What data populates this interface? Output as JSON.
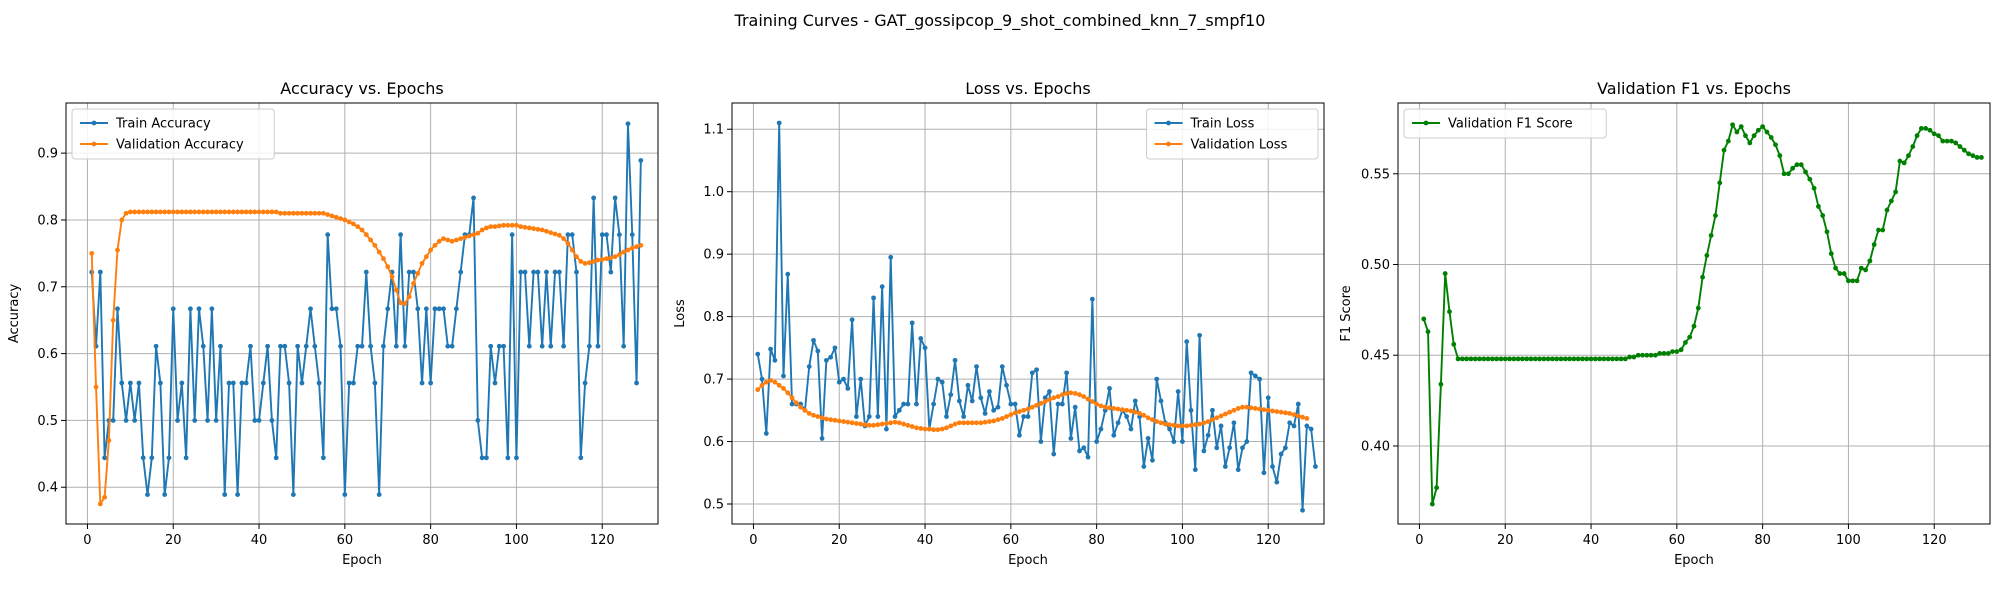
{
  "figure": {
    "suptitle": "Training Curves - GAT_gossipcop_9_shot_combined_knn_7_smpf10"
  },
  "colors": {
    "blue": "#1f77b4",
    "orange": "#ff7f0e",
    "green": "#008000",
    "grid": "#b0b0b0"
  },
  "chart_data": [
    {
      "type": "line",
      "title": "Accuracy vs. Epochs",
      "xlabel": "Epoch",
      "ylabel": "Accuracy",
      "xlim": [
        -5,
        133
      ],
      "ylim": [
        0.345,
        0.975
      ],
      "xticks": [
        0,
        20,
        40,
        60,
        80,
        100,
        120
      ],
      "yticks": [
        0.4,
        0.5,
        0.6,
        0.7,
        0.8,
        0.9
      ],
      "ytick_decimals": 1,
      "grid": true,
      "legend": "upper-left",
      "x_start": 1,
      "series": [
        {
          "name": "Train Accuracy",
          "color": "#1f77b4",
          "values": [
            0.722,
            0.611,
            0.722,
            0.444,
            0.5,
            0.5,
            0.667,
            0.556,
            0.5,
            0.556,
            0.5,
            0.556,
            0.444,
            0.389,
            0.444,
            0.611,
            0.556,
            0.389,
            0.444,
            0.667,
            0.5,
            0.556,
            0.444,
            0.667,
            0.5,
            0.667,
            0.611,
            0.5,
            0.667,
            0.5,
            0.611,
            0.389,
            0.556,
            0.556,
            0.389,
            0.556,
            0.556,
            0.611,
            0.5,
            0.5,
            0.556,
            0.611,
            0.5,
            0.444,
            0.611,
            0.611,
            0.556,
            0.389,
            0.611,
            0.556,
            0.611,
            0.667,
            0.611,
            0.556,
            0.444,
            0.778,
            0.667,
            0.667,
            0.611,
            0.389,
            0.556,
            0.556,
            0.611,
            0.611,
            0.722,
            0.611,
            0.556,
            0.389,
            0.611,
            0.667,
            0.722,
            0.611,
            0.778,
            0.611,
            0.722,
            0.722,
            0.667,
            0.556,
            0.667,
            0.556,
            0.667,
            0.667,
            0.667,
            0.611,
            0.611,
            0.667,
            0.722,
            0.778,
            0.778,
            0.833,
            0.5,
            0.444,
            0.444,
            0.611,
            0.556,
            0.611,
            0.611,
            0.444,
            0.778,
            0.444,
            0.722,
            0.722,
            0.611,
            0.722,
            0.722,
            0.611,
            0.722,
            0.611,
            0.722,
            0.722,
            0.611,
            0.778,
            0.778,
            0.722,
            0.444,
            0.556,
            0.611,
            0.833,
            0.611,
            0.778,
            0.778,
            0.722,
            0.833,
            0.778,
            0.611,
            0.944,
            0.778,
            0.556,
            0.889
          ]
        },
        {
          "name": "Validation Accuracy",
          "color": "#ff7f0e",
          "values": [
            0.75,
            0.55,
            0.375,
            0.385,
            0.47,
            0.65,
            0.755,
            0.8,
            0.81,
            0.812,
            0.812,
            0.812,
            0.812,
            0.812,
            0.812,
            0.812,
            0.812,
            0.812,
            0.812,
            0.812,
            0.812,
            0.812,
            0.812,
            0.812,
            0.812,
            0.812,
            0.812,
            0.812,
            0.812,
            0.812,
            0.812,
            0.812,
            0.812,
            0.812,
            0.812,
            0.812,
            0.812,
            0.812,
            0.812,
            0.812,
            0.812,
            0.812,
            0.812,
            0.812,
            0.81,
            0.81,
            0.81,
            0.81,
            0.81,
            0.81,
            0.81,
            0.81,
            0.81,
            0.81,
            0.81,
            0.808,
            0.806,
            0.804,
            0.802,
            0.8,
            0.797,
            0.794,
            0.79,
            0.785,
            0.778,
            0.77,
            0.762,
            0.752,
            0.742,
            0.73,
            0.715,
            0.695,
            0.676,
            0.675,
            0.685,
            0.705,
            0.72,
            0.735,
            0.745,
            0.755,
            0.762,
            0.768,
            0.772,
            0.77,
            0.768,
            0.77,
            0.772,
            0.774,
            0.776,
            0.778,
            0.78,
            0.785,
            0.788,
            0.79,
            0.79,
            0.791,
            0.792,
            0.792,
            0.792,
            0.792,
            0.79,
            0.789,
            0.788,
            0.787,
            0.786,
            0.785,
            0.783,
            0.781,
            0.779,
            0.777,
            0.772,
            0.765,
            0.755,
            0.745,
            0.738,
            0.735,
            0.736,
            0.738,
            0.74,
            0.741,
            0.742,
            0.743,
            0.745,
            0.748,
            0.752,
            0.755,
            0.758,
            0.76,
            0.762
          ]
        }
      ]
    },
    {
      "type": "line",
      "title": "Loss vs. Epochs",
      "xlabel": "Epoch",
      "ylabel": "Loss",
      "xlim": [
        -5,
        133
      ],
      "ylim": [
        0.468,
        1.142
      ],
      "xticks": [
        0,
        20,
        40,
        60,
        80,
        100,
        120
      ],
      "yticks": [
        0.5,
        0.6,
        0.7,
        0.8,
        0.9,
        1.0,
        1.1
      ],
      "ytick_decimals": 1,
      "grid": true,
      "legend": "upper-right",
      "x_start": 1,
      "series": [
        {
          "name": "Train Loss",
          "color": "#1f77b4",
          "values": [
            0.74,
            0.7,
            0.613,
            0.748,
            0.73,
            1.11,
            0.705,
            0.868,
            0.66,
            0.66,
            0.66,
            0.65,
            0.72,
            0.762,
            0.745,
            0.605,
            0.73,
            0.735,
            0.75,
            0.695,
            0.7,
            0.685,
            0.795,
            0.64,
            0.7,
            0.625,
            0.64,
            0.83,
            0.64,
            0.848,
            0.62,
            0.895,
            0.64,
            0.65,
            0.66,
            0.66,
            0.79,
            0.66,
            0.765,
            0.75,
            0.62,
            0.66,
            0.7,
            0.695,
            0.64,
            0.675,
            0.73,
            0.665,
            0.64,
            0.69,
            0.665,
            0.72,
            0.67,
            0.645,
            0.68,
            0.65,
            0.655,
            0.72,
            0.69,
            0.66,
            0.66,
            0.61,
            0.64,
            0.64,
            0.71,
            0.715,
            0.6,
            0.67,
            0.68,
            0.58,
            0.66,
            0.66,
            0.71,
            0.605,
            0.655,
            0.585,
            0.59,
            0.575,
            0.828,
            0.6,
            0.62,
            0.65,
            0.685,
            0.61,
            0.63,
            0.65,
            0.64,
            0.62,
            0.665,
            0.64,
            0.56,
            0.605,
            0.57,
            0.7,
            0.665,
            0.63,
            0.62,
            0.6,
            0.68,
            0.6,
            0.76,
            0.65,
            0.555,
            0.77,
            0.585,
            0.61,
            0.65,
            0.59,
            0.625,
            0.56,
            0.59,
            0.63,
            0.555,
            0.59,
            0.6,
            0.71,
            0.705,
            0.7,
            0.55,
            0.67,
            0.56,
            0.535,
            0.58,
            0.59,
            0.63,
            0.625,
            0.66,
            0.49,
            0.625,
            0.62,
            0.56
          ]
        },
        {
          "name": "Validation Loss",
          "color": "#ff7f0e",
          "values": [
            0.683,
            0.69,
            0.695,
            0.698,
            0.695,
            0.69,
            0.685,
            0.678,
            0.67,
            0.662,
            0.655,
            0.65,
            0.645,
            0.642,
            0.64,
            0.638,
            0.636,
            0.635,
            0.634,
            0.633,
            0.632,
            0.631,
            0.63,
            0.629,
            0.628,
            0.627,
            0.626,
            0.626,
            0.627,
            0.628,
            0.629,
            0.63,
            0.631,
            0.63,
            0.628,
            0.626,
            0.624,
            0.622,
            0.621,
            0.62,
            0.62,
            0.619,
            0.619,
            0.62,
            0.622,
            0.625,
            0.628,
            0.63,
            0.63,
            0.63,
            0.63,
            0.63,
            0.63,
            0.631,
            0.632,
            0.633,
            0.635,
            0.637,
            0.64,
            0.643,
            0.646,
            0.648,
            0.65,
            0.652,
            0.655,
            0.658,
            0.661,
            0.664,
            0.667,
            0.67,
            0.672,
            0.675,
            0.677,
            0.678,
            0.677,
            0.675,
            0.672,
            0.668,
            0.664,
            0.66,
            0.657,
            0.655,
            0.654,
            0.653,
            0.652,
            0.651,
            0.65,
            0.649,
            0.647,
            0.645,
            0.642,
            0.638,
            0.635,
            0.632,
            0.63,
            0.628,
            0.627,
            0.626,
            0.625,
            0.625,
            0.625,
            0.626,
            0.627,
            0.628,
            0.63,
            0.632,
            0.635,
            0.638,
            0.641,
            0.644,
            0.647,
            0.65,
            0.653,
            0.655,
            0.655,
            0.654,
            0.653,
            0.652,
            0.651,
            0.65,
            0.649,
            0.648,
            0.647,
            0.646,
            0.645,
            0.643,
            0.641,
            0.639,
            0.637
          ]
        }
      ]
    },
    {
      "type": "line",
      "title": "Validation F1 vs. Epochs",
      "xlabel": "Epoch",
      "ylabel": "F1 Score",
      "xlim": [
        -5,
        133
      ],
      "ylim": [
        0.357,
        0.589
      ],
      "xticks": [
        0,
        20,
        40,
        60,
        80,
        100,
        120
      ],
      "yticks": [
        0.4,
        0.45,
        0.5,
        0.55
      ],
      "ytick_decimals": 2,
      "grid": true,
      "legend": "upper-left",
      "x_start": 1,
      "series": [
        {
          "name": "Validation F1 Score",
          "color": "#008000",
          "values": [
            0.47,
            0.463,
            0.368,
            0.377,
            0.434,
            0.495,
            0.474,
            0.456,
            0.448,
            0.448,
            0.448,
            0.448,
            0.448,
            0.448,
            0.448,
            0.448,
            0.448,
            0.448,
            0.448,
            0.448,
            0.448,
            0.448,
            0.448,
            0.448,
            0.448,
            0.448,
            0.448,
            0.448,
            0.448,
            0.448,
            0.448,
            0.448,
            0.448,
            0.448,
            0.448,
            0.448,
            0.448,
            0.448,
            0.448,
            0.448,
            0.448,
            0.448,
            0.448,
            0.448,
            0.448,
            0.448,
            0.448,
            0.448,
            0.449,
            0.449,
            0.45,
            0.45,
            0.45,
            0.45,
            0.45,
            0.451,
            0.451,
            0.451,
            0.452,
            0.452,
            0.453,
            0.457,
            0.46,
            0.466,
            0.476,
            0.493,
            0.505,
            0.516,
            0.527,
            0.545,
            0.563,
            0.568,
            0.577,
            0.573,
            0.576,
            0.571,
            0.567,
            0.571,
            0.574,
            0.576,
            0.573,
            0.57,
            0.566,
            0.56,
            0.55,
            0.55,
            0.553,
            0.555,
            0.555,
            0.551,
            0.547,
            0.542,
            0.532,
            0.527,
            0.518,
            0.506,
            0.498,
            0.495,
            0.495,
            0.491,
            0.491,
            0.491,
            0.498,
            0.497,
            0.502,
            0.511,
            0.519,
            0.519,
            0.53,
            0.535,
            0.54,
            0.557,
            0.556,
            0.56,
            0.565,
            0.571,
            0.575,
            0.575,
            0.574,
            0.572,
            0.571,
            0.568,
            0.568,
            0.568,
            0.567,
            0.565,
            0.563,
            0.561,
            0.56,
            0.559,
            0.559
          ]
        }
      ]
    }
  ]
}
